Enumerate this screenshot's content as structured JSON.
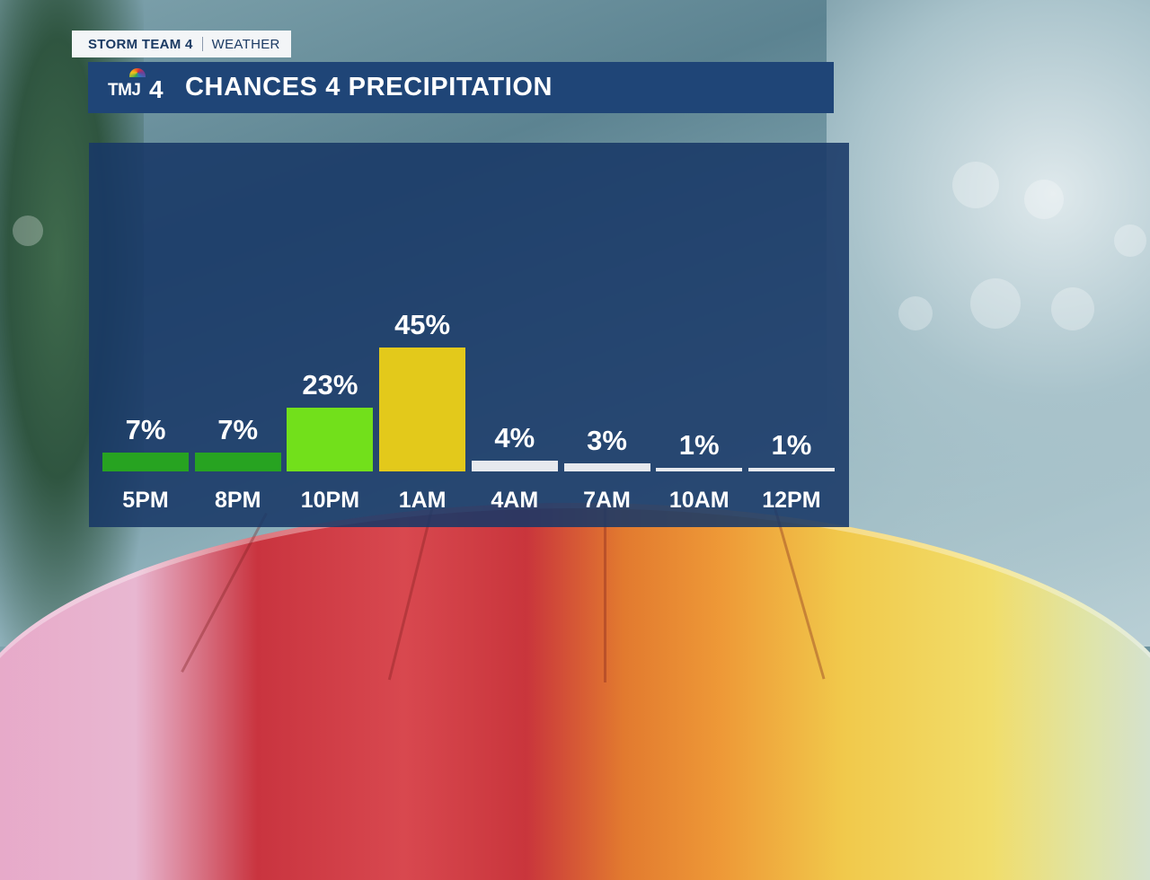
{
  "brand": {
    "team": "STORM TEAM 4",
    "section": "WEATHER",
    "station_logo": "TMJ4",
    "peacock_icon": "nbc-peacock-icon"
  },
  "title": "CHANCES 4 PRECIPITATION",
  "colors": {
    "title_bar": "#1f4577",
    "panel": "#183866",
    "bar_dark_green": "#27a321",
    "bar_bright_green": "#72e01b",
    "bar_yellow": "#e3c91b",
    "bar_white": "#e6e9ee"
  },
  "chart_data": {
    "type": "bar",
    "title": "CHANCES 4 PRECIPITATION",
    "categories": [
      "5PM",
      "8PM",
      "10PM",
      "1AM",
      "4AM",
      "7AM",
      "10AM",
      "12PM"
    ],
    "values": [
      7,
      7,
      23,
      45,
      4,
      3,
      1,
      1
    ],
    "labels": [
      "7%",
      "7%",
      "23%",
      "45%",
      "4%",
      "3%",
      "1%",
      "1%"
    ],
    "bar_colors": [
      "#27a321",
      "#27a321",
      "#72e01b",
      "#e3c91b",
      "#e6e9ee",
      "#e6e9ee",
      "#e6e9ee",
      "#e6e9ee"
    ],
    "unit": "%",
    "ylim": [
      0,
      50
    ],
    "grid": false,
    "legend": "none"
  }
}
